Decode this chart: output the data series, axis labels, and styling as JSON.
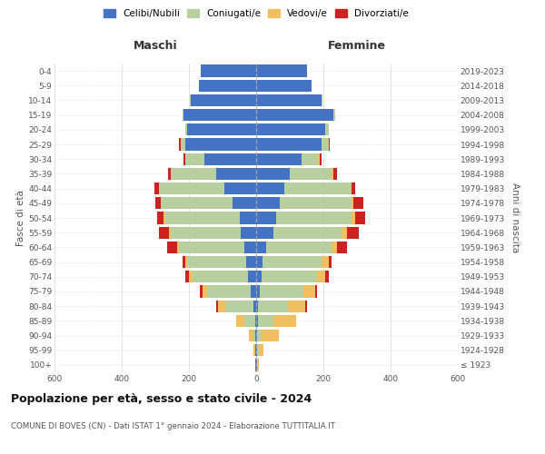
{
  "age_groups": [
    "100+",
    "95-99",
    "90-94",
    "85-89",
    "80-84",
    "75-79",
    "70-74",
    "65-69",
    "60-64",
    "55-59",
    "50-54",
    "45-49",
    "40-44",
    "35-39",
    "30-34",
    "25-29",
    "20-24",
    "15-19",
    "10-14",
    "5-9",
    "0-4"
  ],
  "birth_years": [
    "≤ 1923",
    "1924-1928",
    "1929-1933",
    "1934-1938",
    "1939-1943",
    "1944-1948",
    "1949-1953",
    "1954-1958",
    "1959-1963",
    "1964-1968",
    "1969-1973",
    "1974-1978",
    "1979-1983",
    "1984-1988",
    "1989-1993",
    "1994-1998",
    "1999-2003",
    "2004-2008",
    "2009-2013",
    "2014-2018",
    "2019-2023"
  ],
  "colors": {
    "celibi": "#4472c4",
    "coniugati": "#b8cfa0",
    "vedovi": "#f0c060",
    "divorziati": "#cc2222"
  },
  "male": {
    "celibi": [
      2,
      2,
      2,
      4,
      8,
      15,
      25,
      30,
      35,
      45,
      50,
      70,
      95,
      120,
      155,
      210,
      205,
      215,
      195,
      170,
      165
    ],
    "coniugati": [
      0,
      2,
      5,
      30,
      85,
      130,
      165,
      175,
      195,
      210,
      220,
      215,
      195,
      135,
      55,
      15,
      5,
      5,
      2,
      0,
      0
    ],
    "vedovi": [
      0,
      5,
      15,
      25,
      20,
      15,
      10,
      5,
      5,
      5,
      5,
      0,
      0,
      0,
      0,
      0,
      0,
      0,
      0,
      0,
      0
    ],
    "divorziati": [
      0,
      0,
      0,
      0,
      5,
      8,
      10,
      10,
      30,
      30,
      20,
      15,
      12,
      8,
      5,
      5,
      2,
      0,
      0,
      0,
      0
    ]
  },
  "female": {
    "celibi": [
      2,
      2,
      2,
      5,
      5,
      10,
      15,
      20,
      30,
      50,
      60,
      70,
      85,
      100,
      135,
      195,
      205,
      230,
      195,
      165,
      150
    ],
    "coniugati": [
      0,
      5,
      15,
      45,
      90,
      130,
      165,
      175,
      195,
      205,
      225,
      215,
      195,
      125,
      50,
      20,
      10,
      5,
      2,
      0,
      0
    ],
    "vedovi": [
      5,
      15,
      50,
      70,
      50,
      35,
      25,
      20,
      15,
      15,
      10,
      5,
      5,
      5,
      5,
      2,
      0,
      0,
      0,
      0,
      0
    ],
    "divorziati": [
      0,
      0,
      0,
      0,
      5,
      5,
      10,
      10,
      30,
      35,
      30,
      30,
      10,
      10,
      5,
      2,
      0,
      0,
      0,
      0,
      0
    ]
  },
  "title": "Popolazione per età, sesso e stato civile - 2024",
  "subtitle": "COMUNE DI BOVES (CN) - Dati ISTAT 1° gennaio 2024 - Elaborazione TUTTITALIA.IT",
  "xlabel_left": "Maschi",
  "xlabel_right": "Femmine",
  "ylabel_left": "Fasce di età",
  "ylabel_right": "Anni di nascita",
  "xlim": 600,
  "legend_labels": [
    "Celibi/Nubili",
    "Coniugati/e",
    "Vedovi/e",
    "Divorziati/e"
  ],
  "background_color": "#ffffff",
  "grid_color": "#cccccc"
}
